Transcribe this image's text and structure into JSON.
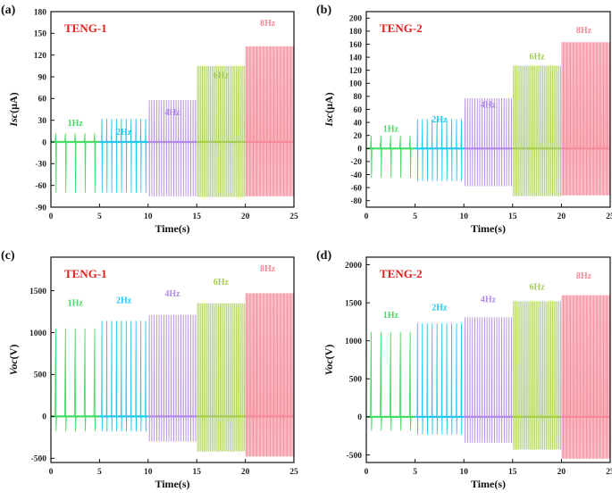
{
  "colors": {
    "1Hz": "#44dd66",
    "2Hz": "#22c8ee",
    "4Hz": "#b48ae8",
    "6Hz": "#a6cc55",
    "8Hz": "#f58a98",
    "title": "#e0201c"
  },
  "chart_data": [
    {
      "type": "line",
      "panel_label": "(a)",
      "title": "TENG-1",
      "xlabel": "Time(s)",
      "ylabel_parts": [
        "I",
        "sc",
        "(μA)"
      ],
      "xlim": [
        0,
        25
      ],
      "ylim": [
        -90,
        180
      ],
      "xticks": [
        0,
        5,
        10,
        15,
        20,
        25
      ],
      "yticks": [
        -90,
        -60,
        -30,
        0,
        30,
        60,
        90,
        120,
        150,
        180
      ],
      "series": [
        {
          "name": "1Hz",
          "t_range": [
            0,
            5
          ],
          "frequency": 1,
          "peak_max": 12,
          "peak_min": -70,
          "label_pos": [
            2.5,
            22
          ]
        },
        {
          "name": "2Hz",
          "t_range": [
            5,
            10
          ],
          "frequency": 2,
          "peak_max": 32,
          "peak_min": -70,
          "label_pos": [
            7.5,
            10
          ]
        },
        {
          "name": "4Hz",
          "t_range": [
            10,
            15
          ],
          "frequency": 4,
          "peak_max": 58,
          "peak_min": -75,
          "label_pos": [
            12.5,
            37
          ]
        },
        {
          "name": "6Hz",
          "t_range": [
            15,
            20
          ],
          "frequency": 6,
          "peak_max": 105,
          "peak_min": -76,
          "label_pos": [
            17.5,
            88
          ]
        },
        {
          "name": "8Hz",
          "t_range": [
            20,
            25
          ],
          "frequency": 8,
          "peak_max": 132,
          "peak_min": -75,
          "label_pos": [
            22.3,
            160
          ]
        }
      ]
    },
    {
      "type": "line",
      "panel_label": "(b)",
      "title": "TENG-2",
      "xlabel": "Time(s)",
      "ylabel_parts": [
        "I",
        "sc",
        "(μA)"
      ],
      "xlim": [
        0,
        25
      ],
      "ylim": [
        -90,
        210
      ],
      "xticks": [
        0,
        5,
        10,
        15,
        20,
        25
      ],
      "yticks": [
        -80,
        -60,
        -40,
        -20,
        0,
        20,
        40,
        60,
        80,
        100,
        120,
        140,
        160,
        180,
        200
      ],
      "series": [
        {
          "name": "1Hz",
          "t_range": [
            0,
            5
          ],
          "frequency": 1,
          "peak_max": 20,
          "peak_min": -45,
          "label_pos": [
            2.5,
            26
          ]
        },
        {
          "name": "2Hz",
          "t_range": [
            5,
            10
          ],
          "frequency": 2,
          "peak_max": 45,
          "peak_min": -50,
          "label_pos": [
            7.5,
            40
          ]
        },
        {
          "name": "4Hz",
          "t_range": [
            10,
            15
          ],
          "frequency": 4,
          "peak_max": 77,
          "peak_min": -58,
          "label_pos": [
            12.5,
            63
          ]
        },
        {
          "name": "6Hz",
          "t_range": [
            15,
            20
          ],
          "frequency": 6,
          "peak_max": 127,
          "peak_min": -73,
          "label_pos": [
            17.5,
            137
          ]
        },
        {
          "name": "8Hz",
          "t_range": [
            20,
            25
          ],
          "frequency": 8,
          "peak_max": 163,
          "peak_min": -72,
          "label_pos": [
            22.3,
            177
          ]
        }
      ]
    },
    {
      "type": "line",
      "panel_label": "(c)",
      "title": "TENG-1",
      "xlabel": "Time(s)",
      "ylabel_parts": [
        "V",
        "oc",
        "(V)"
      ],
      "xlim": [
        0,
        25
      ],
      "ylim": [
        -550,
        1900
      ],
      "xticks": [
        0,
        5,
        10,
        15,
        20,
        25
      ],
      "yticks": [
        -500,
        0,
        500,
        1000,
        1500
      ],
      "series": [
        {
          "name": "1Hz",
          "t_range": [
            0,
            5
          ],
          "frequency": 1,
          "peak_max": 1050,
          "peak_min": -180,
          "label_pos": [
            2.5,
            1320
          ]
        },
        {
          "name": "2Hz",
          "t_range": [
            5,
            10
          ],
          "frequency": 2,
          "peak_max": 1140,
          "peak_min": -180,
          "label_pos": [
            7.5,
            1350
          ]
        },
        {
          "name": "4Hz",
          "t_range": [
            10,
            15
          ],
          "frequency": 4,
          "peak_max": 1210,
          "peak_min": -300,
          "label_pos": [
            12.5,
            1430
          ]
        },
        {
          "name": "6Hz",
          "t_range": [
            15,
            20
          ],
          "frequency": 6,
          "peak_max": 1350,
          "peak_min": -420,
          "label_pos": [
            17.5,
            1570
          ]
        },
        {
          "name": "8Hz",
          "t_range": [
            20,
            25
          ],
          "frequency": 8,
          "peak_max": 1470,
          "peak_min": -480,
          "label_pos": [
            22.3,
            1730
          ]
        }
      ]
    },
    {
      "type": "line",
      "panel_label": "(d)",
      "title": "TENG-2",
      "xlabel": "Time(s)",
      "ylabel_parts": [
        "V",
        "oc",
        "(V)"
      ],
      "xlim": [
        0,
        25
      ],
      "ylim": [
        -600,
        2100
      ],
      "xticks": [
        0,
        5,
        10,
        15,
        20,
        25
      ],
      "yticks": [
        -500,
        0,
        500,
        1000,
        1500,
        2000
      ],
      "series": [
        {
          "name": "1Hz",
          "t_range": [
            0,
            5
          ],
          "frequency": 1,
          "peak_max": 1120,
          "peak_min": -180,
          "label_pos": [
            2.5,
            1300
          ]
        },
        {
          "name": "2Hz",
          "t_range": [
            5,
            10
          ],
          "frequency": 2,
          "peak_max": 1230,
          "peak_min": -230,
          "label_pos": [
            7.5,
            1400
          ]
        },
        {
          "name": "4Hz",
          "t_range": [
            10,
            15
          ],
          "frequency": 4,
          "peak_max": 1310,
          "peak_min": -340,
          "label_pos": [
            12.5,
            1510
          ]
        },
        {
          "name": "6Hz",
          "t_range": [
            15,
            20
          ],
          "frequency": 6,
          "peak_max": 1520,
          "peak_min": -430,
          "label_pos": [
            17.5,
            1670
          ]
        },
        {
          "name": "8Hz",
          "t_range": [
            20,
            25
          ],
          "frequency": 8,
          "peak_max": 1600,
          "peak_min": -550,
          "label_pos": [
            22.3,
            1820
          ]
        }
      ]
    }
  ]
}
